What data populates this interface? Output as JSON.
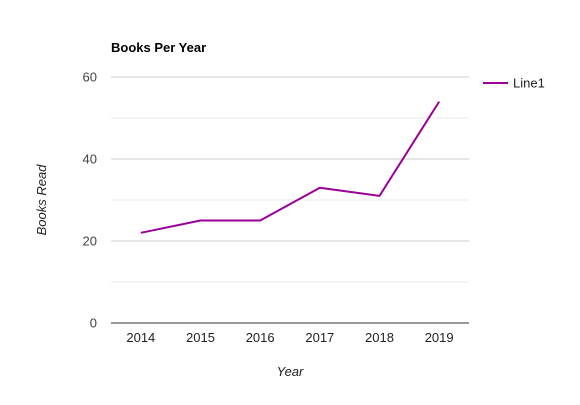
{
  "chart_data": {
    "type": "line",
    "title": "Books Per Year",
    "xlabel": "Year",
    "ylabel": "Books Read",
    "categories": [
      "2014",
      "2015",
      "2016",
      "2017",
      "2018",
      "2019"
    ],
    "series": [
      {
        "name": "Line1",
        "values": [
          22,
          25,
          25,
          33,
          31,
          54
        ],
        "color": "#990099"
      }
    ],
    "ylim": [
      0,
      60
    ],
    "yticks": [
      0,
      20,
      40,
      60
    ],
    "grid": true,
    "legend_position": "right"
  }
}
